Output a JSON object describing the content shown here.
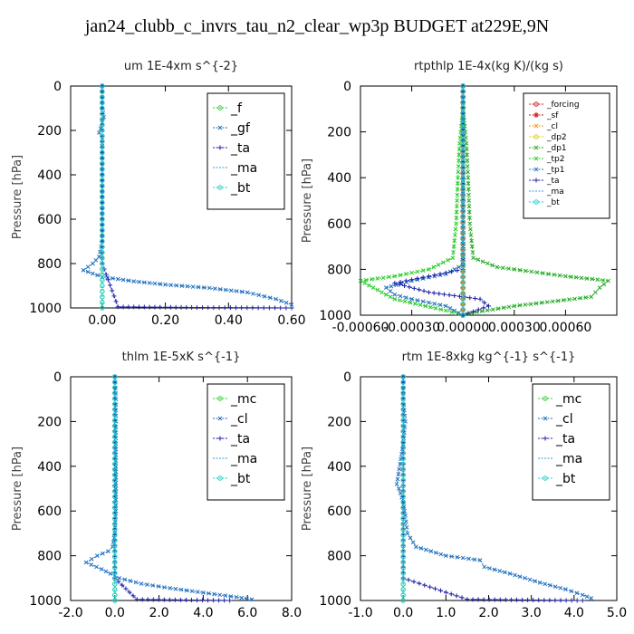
{
  "figure": {
    "title": "jan24_clubb_c_invrs_tau_n2_clear_wp3p  BUDGET at229E,9N"
  },
  "chart_data": [
    {
      "id": "um",
      "type": "line",
      "title": "um   1E-4xm s^{-2}",
      "ylabel": "Pressure [hPa]",
      "xlabel": "",
      "xlim": [
        -0.1,
        0.6
      ],
      "ylim": [
        1000,
        0
      ],
      "yticks": [
        0,
        200,
        400,
        600,
        800,
        1000
      ],
      "xticks": [
        0.0,
        0.2,
        0.4,
        0.6
      ],
      "xtick_labels": [
        "0.00",
        "0.20",
        "0.40",
        "0.60"
      ],
      "legend": {
        "position": "top-right",
        "size": "large",
        "entries": [
          "_f",
          "_gf",
          "_ta",
          "_ma",
          "_bt"
        ]
      },
      "series": [
        {
          "name": "_f",
          "color": "#33cc33",
          "marker": "o",
          "points": [
            [
              0,
              0
            ],
            [
              0,
              100
            ],
            [
              0,
              200
            ],
            [
              0,
              300
            ],
            [
              0,
              400
            ],
            [
              0,
              500
            ],
            [
              0,
              600
            ],
            [
              0,
              700
            ],
            [
              0,
              800
            ],
            [
              0,
              900
            ],
            [
              0,
              1000
            ]
          ]
        },
        {
          "name": "_gf",
          "color": "#1f6fbf",
          "marker": "x",
          "points": [
            [
              0,
              0
            ],
            [
              0,
              100
            ],
            [
              0.005,
              140
            ],
            [
              -0.005,
              190
            ],
            [
              -0.01,
              210
            ],
            [
              0,
              240
            ],
            [
              0,
              300
            ],
            [
              0,
              400
            ],
            [
              0,
              500
            ],
            [
              0,
              600
            ],
            [
              0,
              700
            ],
            [
              -0.01,
              770
            ],
            [
              -0.03,
              800
            ],
            [
              -0.06,
              830
            ],
            [
              0,
              860
            ],
            [
              0.1,
              880
            ],
            [
              0.2,
              895
            ],
            [
              0.34,
              910
            ],
            [
              0.46,
              930
            ],
            [
              0.55,
              960
            ],
            [
              0.6,
              985
            ]
          ]
        },
        {
          "name": "_ta",
          "color": "#2222aa",
          "marker": "+",
          "points": [
            [
              0,
              0
            ],
            [
              0,
              200
            ],
            [
              0,
              400
            ],
            [
              0,
              600
            ],
            [
              0,
              800
            ],
            [
              0.05,
              995
            ],
            [
              0.3,
              998
            ],
            [
              0.6,
              1000
            ]
          ]
        },
        {
          "name": "_ma",
          "color": "#3399dd",
          "marker": "-",
          "points": [
            [
              0,
              0
            ],
            [
              0,
              500
            ],
            [
              0,
              1000
            ]
          ]
        },
        {
          "name": "_bt",
          "color": "#22cccc",
          "marker": "o",
          "points": [
            [
              0,
              0
            ],
            [
              0,
              500
            ],
            [
              0,
              1000
            ]
          ]
        }
      ]
    },
    {
      "id": "rtpthlp",
      "type": "line",
      "title": "rtpthlp   1E-4x(kg K)/(kg s)",
      "ylabel": "Pressure [hPa]",
      "xlabel": "",
      "xlim": [
        -0.0006,
        0.0009
      ],
      "ylim": [
        1000,
        0
      ],
      "yticks": [
        0,
        200,
        400,
        600,
        800,
        1000
      ],
      "xticks": [
        -0.0006,
        -0.0003,
        0.0,
        0.0003,
        0.0006
      ],
      "xtick_labels": [
        "-0.00060",
        "-0.00030",
        "0.00000",
        "0.00030",
        "0.00060"
      ],
      "legend": {
        "position": "top-right",
        "size": "small",
        "entries": [
          "_forcing",
          "_sf",
          "_cl",
          "_dp2",
          "_dp1",
          "_tp2",
          "_tp1",
          "_ta",
          "_ma",
          "_bt"
        ]
      },
      "series": [
        {
          "name": "_forcing",
          "color": "#cc2222",
          "marker": "o",
          "points": [
            [
              0,
              0
            ],
            [
              0,
              1000
            ]
          ]
        },
        {
          "name": "_sf",
          "color": "#cc2222",
          "marker": "*",
          "points": [
            [
              0,
              0
            ],
            [
              0,
              1000
            ]
          ]
        },
        {
          "name": "_cl",
          "color": "#ee9922",
          "marker": "x",
          "points": [
            [
              0,
              0
            ],
            [
              0,
              1000
            ]
          ]
        },
        {
          "name": "_dp2",
          "color": "#ddcc22",
          "marker": "o",
          "points": [
            [
              0,
              0
            ],
            [
              0,
              1000
            ]
          ]
        },
        {
          "name": "_dp1",
          "color": "#22aa22",
          "marker": "x",
          "points": [
            [
              0,
              0
            ],
            [
              0,
              100
            ],
            [
              2e-05,
              250
            ],
            [
              3e-05,
              400
            ],
            [
              4e-05,
              600
            ],
            [
              6e-05,
              750
            ],
            [
              0.0002,
              790
            ],
            [
              0.0004,
              810
            ],
            [
              0.0006,
              830
            ],
            [
              0.00085,
              850
            ],
            [
              0.0008,
              880
            ],
            [
              0.00075,
              920
            ],
            [
              0.0003,
              960
            ],
            [
              5e-05,
              990
            ],
            [
              0,
              1000
            ]
          ]
        },
        {
          "name": "_tp2",
          "color": "#22cc22",
          "marker": "x",
          "points": [
            [
              0,
              0
            ],
            [
              0,
              100
            ],
            [
              -2e-05,
              250
            ],
            [
              -3e-05,
              400
            ],
            [
              -4e-05,
              600
            ],
            [
              -6e-05,
              750
            ],
            [
              -0.0002,
              800
            ],
            [
              -0.0004,
              830
            ],
            [
              -0.0006,
              850
            ],
            [
              -0.0005,
              890
            ],
            [
              -0.0004,
              930
            ],
            [
              -0.0001,
              980
            ],
            [
              0,
              1000
            ]
          ]
        },
        {
          "name": "_tp1",
          "color": "#1f6fbf",
          "marker": "x",
          "points": [
            [
              0,
              0
            ],
            [
              0,
              400
            ],
            [
              0,
              700
            ],
            [
              0,
              780
            ],
            [
              -0.0001,
              820
            ],
            [
              -0.0003,
              850
            ],
            [
              -0.00045,
              880
            ],
            [
              -0.0004,
              910
            ],
            [
              -0.0003,
              930
            ],
            [
              -0.0001,
              960
            ],
            [
              0,
              1000
            ]
          ]
        },
        {
          "name": "_ta",
          "color": "#2222aa",
          "marker": "+",
          "points": [
            [
              0,
              0
            ],
            [
              0,
              800
            ],
            [
              -0.0002,
              830
            ],
            [
              -0.0004,
              860
            ],
            [
              -0.0002,
              900
            ],
            [
              0.0001,
              930
            ],
            [
              0.00015,
              960
            ],
            [
              0,
              1000
            ]
          ]
        },
        {
          "name": "_ma",
          "color": "#3399dd",
          "marker": "-",
          "points": [
            [
              0,
              0
            ],
            [
              0,
              1000
            ]
          ]
        },
        {
          "name": "_bt",
          "color": "#22cccc",
          "marker": "o",
          "points": [
            [
              0,
              0
            ],
            [
              0,
              1000
            ]
          ]
        }
      ]
    },
    {
      "id": "thlm",
      "type": "line",
      "title": "thlm   1E-5xK s^{-1}",
      "ylabel": "Pressure [hPa]",
      "xlabel": "",
      "xlim": [
        -2.0,
        8.0
      ],
      "ylim": [
        1000,
        0
      ],
      "yticks": [
        0,
        200,
        400,
        600,
        800,
        1000
      ],
      "xticks": [
        -2,
        0,
        2,
        4,
        6,
        8
      ],
      "xtick_labels": [
        "-2.0",
        "0.0",
        "2.0",
        "4.0",
        "6.0",
        "8.0"
      ],
      "legend": {
        "position": "top-right",
        "size": "large",
        "entries": [
          "_mc",
          "_cl",
          "_ta",
          "_ma",
          "_bt"
        ]
      },
      "series": [
        {
          "name": "_mc",
          "color": "#33cc33",
          "marker": "o",
          "points": [
            [
              0,
              0
            ],
            [
              0,
              1000
            ]
          ]
        },
        {
          "name": "_cl",
          "color": "#1f6fbf",
          "marker": "x",
          "points": [
            [
              0,
              0
            ],
            [
              0.05,
              100
            ],
            [
              0.05,
              200
            ],
            [
              0.05,
              400
            ],
            [
              0.05,
              600
            ],
            [
              0,
              700
            ],
            [
              -0.1,
              760
            ],
            [
              -0.3,
              780
            ],
            [
              -0.8,
              800
            ],
            [
              -1.3,
              830
            ],
            [
              -0.6,
              860
            ],
            [
              0.2,
              900
            ],
            [
              1.2,
              925
            ],
            [
              2.5,
              945
            ],
            [
              4.0,
              965
            ],
            [
              5.5,
              985
            ],
            [
              6.2,
              995
            ]
          ]
        },
        {
          "name": "_ta",
          "color": "#2222aa",
          "marker": "+",
          "points": [
            [
              0,
              0
            ],
            [
              0,
              900
            ],
            [
              1.0,
              995
            ],
            [
              5.2,
              1000
            ]
          ]
        },
        {
          "name": "_ma",
          "color": "#3399dd",
          "marker": "-",
          "points": [
            [
              0,
              0
            ],
            [
              0,
              1000
            ]
          ]
        },
        {
          "name": "_bt",
          "color": "#22cccc",
          "marker": "o",
          "points": [
            [
              0,
              0
            ],
            [
              0,
              1000
            ]
          ]
        }
      ]
    },
    {
      "id": "rtm",
      "type": "line",
      "title": "rtm   1E-8xkg kg^{-1} s^{-1}",
      "ylabel": "Pressure [hPa]",
      "xlabel": "",
      "xlim": [
        -1.0,
        5.0
      ],
      "ylim": [
        1000,
        0
      ],
      "yticks": [
        0,
        200,
        400,
        600,
        800,
        1000
      ],
      "xticks": [
        -1,
        0,
        1,
        2,
        3,
        4,
        5
      ],
      "xtick_labels": [
        "-1.0",
        "0.0",
        "1.0",
        "2.0",
        "3.0",
        "4.0",
        "5.0"
      ],
      "legend": {
        "position": "top-right",
        "size": "large",
        "entries": [
          "_mc",
          "_cl",
          "_ta",
          "_ma",
          "_bt"
        ]
      },
      "series": [
        {
          "name": "_mc",
          "color": "#33cc33",
          "marker": "o",
          "points": [
            [
              0,
              0
            ],
            [
              0,
              1000
            ]
          ]
        },
        {
          "name": "_cl",
          "color": "#1f6fbf",
          "marker": "x",
          "points": [
            [
              0,
              0
            ],
            [
              0,
              100
            ],
            [
              0.05,
              200
            ],
            [
              0,
              300
            ],
            [
              -0.15,
              480
            ],
            [
              -0.1,
              500
            ],
            [
              0,
              560
            ],
            [
              0.05,
              620
            ],
            [
              0.1,
              700
            ],
            [
              0.3,
              760
            ],
            [
              1.0,
              800
            ],
            [
              1.8,
              820
            ],
            [
              1.9,
              850
            ],
            [
              2.5,
              880
            ],
            [
              3.2,
              920
            ],
            [
              3.8,
              950
            ],
            [
              4.2,
              975
            ],
            [
              4.4,
              990
            ]
          ]
        },
        {
          "name": "_ta",
          "color": "#2222aa",
          "marker": "+",
          "points": [
            [
              0,
              0
            ],
            [
              0,
              900
            ],
            [
              1.5,
              995
            ],
            [
              4.2,
              1000
            ]
          ]
        },
        {
          "name": "_ma",
          "color": "#3399dd",
          "marker": "-",
          "points": [
            [
              0,
              0
            ],
            [
              0,
              1000
            ]
          ]
        },
        {
          "name": "_bt",
          "color": "#22cccc",
          "marker": "o",
          "points": [
            [
              0,
              0
            ],
            [
              0,
              1000
            ]
          ]
        }
      ]
    }
  ]
}
